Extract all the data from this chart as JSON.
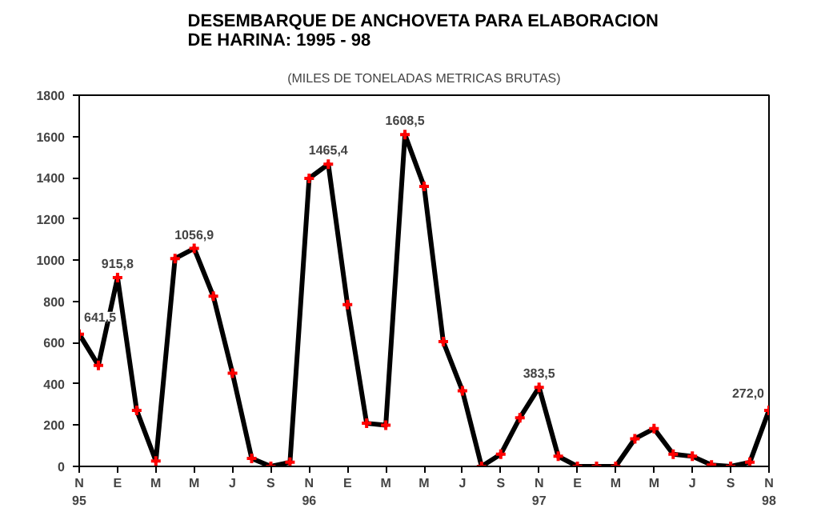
{
  "chart_data": {
    "type": "line",
    "title": "DESEMBARQUE DE ANCHOVETA PARA ELABORACION\nDE HARINA: 1995 - 98",
    "subtitle": "(MILES DE TONELADAS METRICAS BRUTAS)",
    "categories": [
      "N\n95",
      null,
      "E",
      null,
      "M",
      null,
      "M",
      null,
      "J",
      null,
      "S",
      null,
      "N\n96",
      null,
      "E",
      null,
      "M",
      null,
      "M",
      null,
      "J",
      null,
      "S",
      null,
      "N\n97",
      null,
      "E",
      null,
      "M",
      null,
      "M",
      null,
      "J",
      null,
      "S",
      null,
      "N\n98"
    ],
    "series": [
      {
        "color": "#000000",
        "colors": [
          "#ff0000",
          "#ff0000",
          "#ff0000",
          "#ff0000",
          "#ff0000",
          "#ff0000",
          "#ff0000",
          "#ff0000",
          "#ff0000",
          "#ff0000",
          "#ff0000",
          "#ff0000",
          "#ff0000",
          "#ff0000",
          "#ff0000",
          "#ff0000",
          "#ff0000",
          "#ff0000",
          "#ff0000",
          "#ff0000",
          "#ff0000",
          "#ff0000",
          "#ff0000",
          "#ff0000",
          "#ff0000",
          "#ff0000",
          "#ff0000",
          "#ff0000",
          "#ff0000",
          "#ff0000",
          "#ff0000",
          "#ff0000",
          "#ff0000",
          "#ff0000",
          "#ff0000",
          "#ff0000",
          "#ff0000"
        ],
        "values": [
          641.5,
          490,
          915.8,
          272,
          26,
          1008,
          1056.9,
          825,
          452,
          39,
          0,
          20,
          1397,
          1465.4,
          785,
          209,
          200,
          1608.5,
          1358,
          605,
          367,
          0,
          59,
          236,
          383.5,
          49,
          0,
          0,
          0,
          134,
          183,
          59,
          49,
          7,
          0,
          20,
          272.0
        ],
        "value_labels": [
          "641,5",
          null,
          "915,8",
          null,
          null,
          null,
          "1056,9",
          null,
          null,
          null,
          null,
          null,
          null,
          "1465,4",
          null,
          null,
          null,
          "1608,5",
          null,
          null,
          null,
          null,
          null,
          null,
          "383,5",
          null,
          null,
          null,
          null,
          null,
          null,
          null,
          null,
          null,
          null,
          null,
          "272,0"
        ]
      }
    ],
    "ylim": [
      0,
      1800
    ],
    "yticks": [
      0,
      200,
      400,
      600,
      800,
      1000,
      1200,
      1400,
      1600,
      1800
    ],
    "grid": false,
    "marker": "cross",
    "line_style": "solid"
  }
}
